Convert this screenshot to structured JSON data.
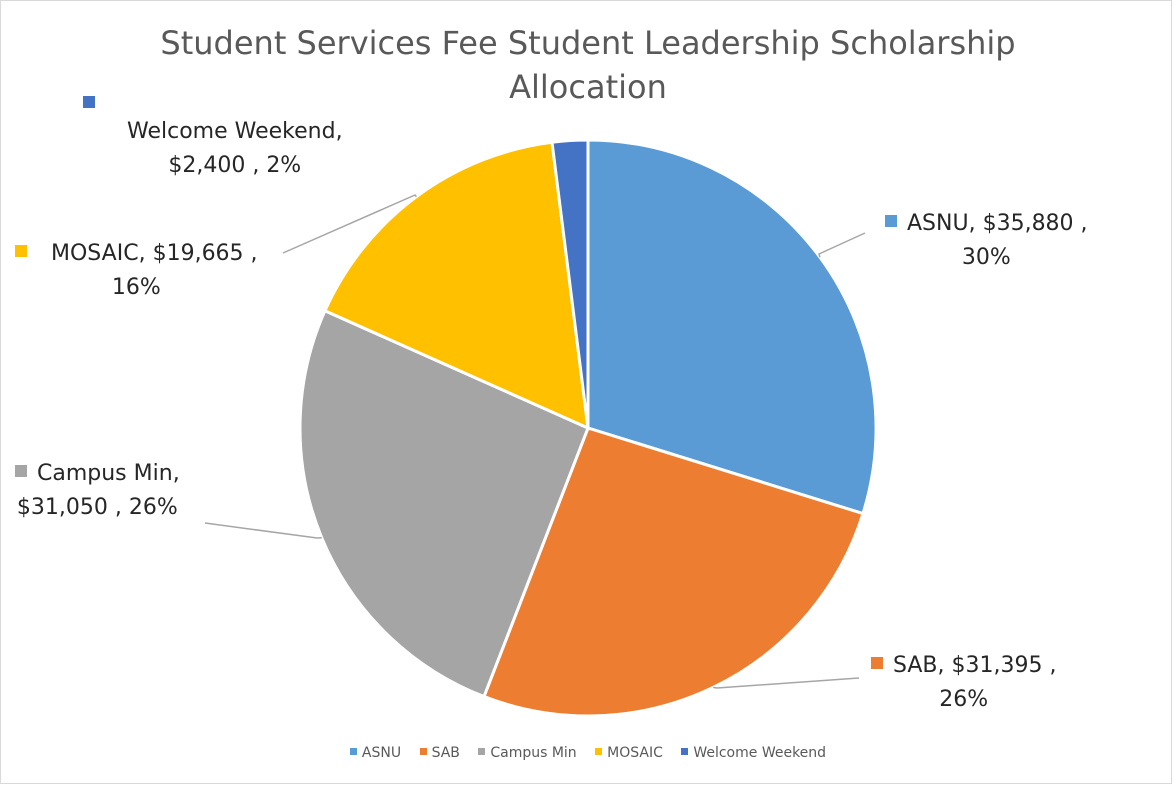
{
  "chart_data": {
    "type": "pie",
    "title": "Student Services Fee Student Leadership Scholarship Allocation",
    "legend_position": "bottom",
    "slices": [
      {
        "name": "ASNU",
        "value": 35880,
        "value_label": "$35,880",
        "percent_label": "30%",
        "color": "#5B9BD5"
      },
      {
        "name": "SAB",
        "value": 31395,
        "value_label": "$31,395",
        "percent_label": "26%",
        "color": "#ED7D31"
      },
      {
        "name": "Campus Min",
        "value": 31050,
        "value_label": "$31,050",
        "percent_label": "26%",
        "color": "#A5A5A5"
      },
      {
        "name": "MOSAIC",
        "value": 19665,
        "value_label": "$19,665",
        "percent_label": "16%",
        "color": "#FFC000"
      },
      {
        "name": "Welcome Weekend",
        "value": 2400,
        "value_label": "$2,400",
        "percent_label": "2%",
        "color": "#4472C4"
      }
    ]
  }
}
